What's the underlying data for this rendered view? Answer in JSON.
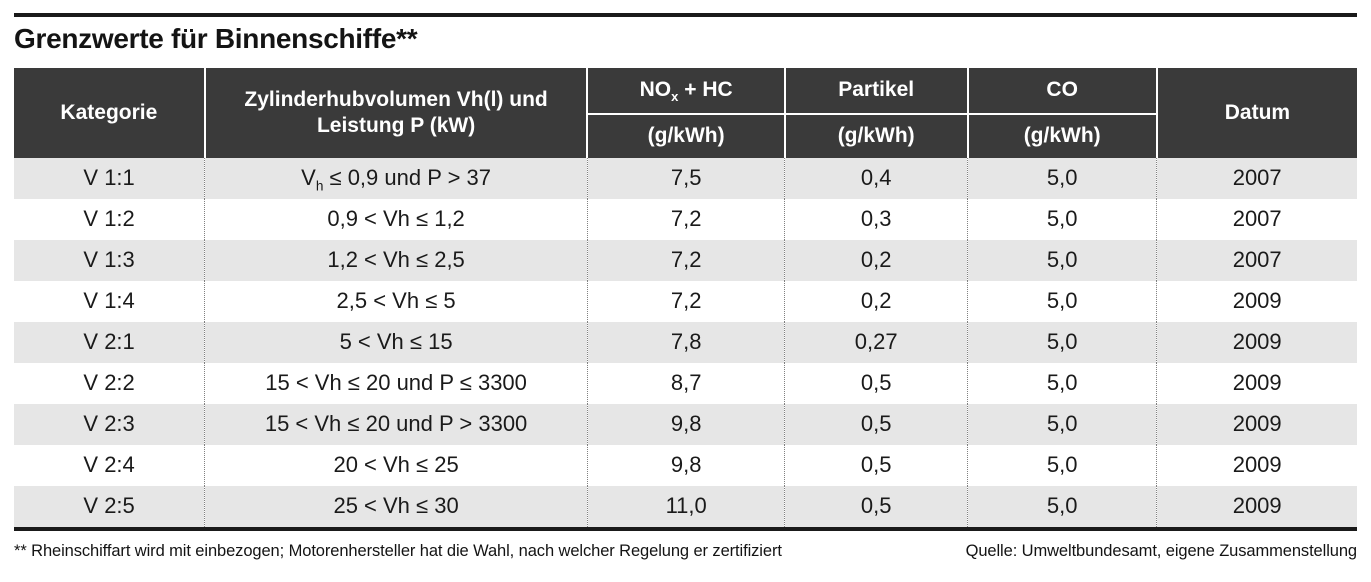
{
  "title": "Grenzwerte für Binnenschiffe**",
  "colors": {
    "header_bg": "#3a3a3a",
    "row_alt_bg": "#e6e6e6",
    "rule": "#1a1a1a"
  },
  "table": {
    "headers": {
      "kategorie": "Kategorie",
      "volumen": "Zylinderhubvolumen Vh(l) und Leistung P (kW)",
      "nox_pre": "NO",
      "nox_sub": "x",
      "nox_post": " + HC",
      "partikel": "Partikel",
      "co": "CO",
      "datum": "Datum",
      "unit": "(g/kWh)"
    },
    "rows": [
      {
        "kategorie": "V 1:1",
        "volumen_pre": "V",
        "volumen_sub": "h",
        "volumen_post": " ≤ 0,9 und P > 37",
        "nox_hc": "7,5",
        "partikel": "0,4",
        "co": "5,0",
        "datum": "2007"
      },
      {
        "kategorie": "V 1:2",
        "volumen": "0,9 < Vh ≤ 1,2",
        "nox_hc": "7,2",
        "partikel": "0,3",
        "co": "5,0",
        "datum": "2007"
      },
      {
        "kategorie": "V 1:3",
        "volumen": "1,2 < Vh ≤ 2,5",
        "nox_hc": "7,2",
        "partikel": "0,2",
        "co": "5,0",
        "datum": "2007"
      },
      {
        "kategorie": "V 1:4",
        "volumen": "2,5 < Vh ≤ 5",
        "nox_hc": "7,2",
        "partikel": "0,2",
        "co": "5,0",
        "datum": "2009"
      },
      {
        "kategorie": "V 2:1",
        "volumen": "5 < Vh ≤ 15",
        "nox_hc": "7,8",
        "partikel": "0,27",
        "co": "5,0",
        "datum": "2009"
      },
      {
        "kategorie": "V 2:2",
        "volumen": "15 < Vh ≤ 20 und P ≤ 3300",
        "nox_hc": "8,7",
        "partikel": "0,5",
        "co": "5,0",
        "datum": "2009"
      },
      {
        "kategorie": "V 2:3",
        "volumen": "15 < Vh ≤ 20 und P > 3300",
        "nox_hc": "9,8",
        "partikel": "0,5",
        "co": "5,0",
        "datum": "2009"
      },
      {
        "kategorie": "V 2:4",
        "volumen": "20 < Vh ≤ 25",
        "nox_hc": "9,8",
        "partikel": "0,5",
        "co": "5,0",
        "datum": "2009"
      },
      {
        "kategorie": "V 2:5",
        "volumen": "25 < Vh ≤ 30",
        "nox_hc": "11,0",
        "partikel": "0,5",
        "co": "5,0",
        "datum": "2009"
      }
    ]
  },
  "footer": {
    "footnote": "** Rheinschiffart wird mit einbezogen; Motorenhersteller hat die Wahl, nach welcher Regelung er zertifiziert",
    "source": "Quelle: Umweltbundesamt, eigene Zusammenstellung"
  }
}
